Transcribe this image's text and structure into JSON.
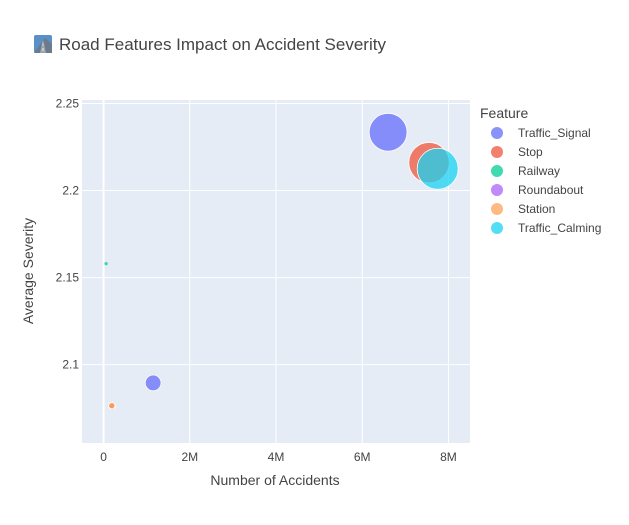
{
  "chart_data": {
    "type": "scatter",
    "title": "Road Features Impact on Accident Severity",
    "title_icon": "road-emoji-icon",
    "xlabel": "Number of Accidents",
    "ylabel": "Average Severity",
    "xlim": [
      -500000,
      8500000
    ],
    "ylim": [
      2.055,
      2.252
    ],
    "x_ticks": [
      0,
      2000000,
      4000000,
      6000000,
      8000000
    ],
    "x_tick_labels": [
      "0",
      "2M",
      "4M",
      "6M",
      "8M"
    ],
    "y_ticks": [
      2.1,
      2.15,
      2.2,
      2.25
    ],
    "y_tick_labels": [
      "2.1",
      "2.15",
      "2.2",
      "2.25"
    ],
    "grid": true,
    "plot_bg": "#e5ecf6",
    "legend_title": "Feature",
    "legend_position": "right",
    "series": [
      {
        "name": "Traffic_Signal",
        "color": "#636efa",
        "points": [
          {
            "x": 6600000,
            "y": 2.2335,
            "size": 6600000
          },
          {
            "x": 1150000,
            "y": 2.0895,
            "size": 1150000
          }
        ]
      },
      {
        "name": "Stop",
        "color": "#ef553b",
        "points": [
          {
            "x": 7550000,
            "y": 2.216,
            "size": 7550000
          },
          {
            "x": 200000,
            "y": 2.076,
            "size": 200000
          }
        ]
      },
      {
        "name": "Railway",
        "color": "#00cc96",
        "points": [
          {
            "x": 60000,
            "y": 2.158,
            "size": 60000
          }
        ]
      },
      {
        "name": "Roundabout",
        "color": "#ab63fa",
        "points": []
      },
      {
        "name": "Station",
        "color": "#ffa15a",
        "points": [
          {
            "x": 190000,
            "y": 2.0765,
            "size": 190000
          }
        ]
      },
      {
        "name": "Traffic_Calming",
        "color": "#19d3f3",
        "points": [
          {
            "x": 7750000,
            "y": 2.2125,
            "size": 7750000
          }
        ]
      }
    ]
  }
}
